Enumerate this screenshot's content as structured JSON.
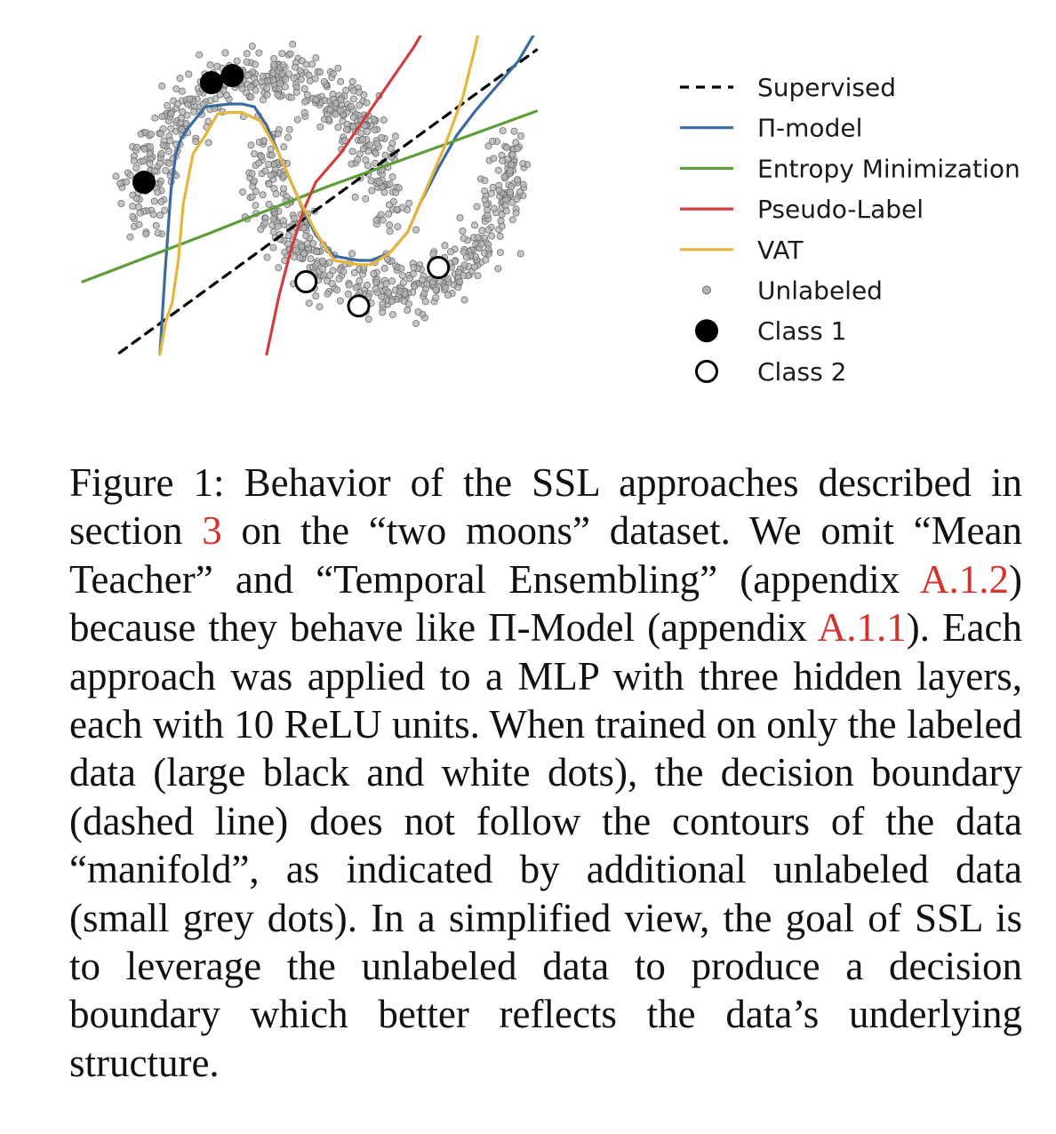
{
  "chart_data": {
    "type": "scatter",
    "title": "",
    "xlabel": "",
    "ylabel": "",
    "xlim": [
      -1.5,
      2.5
    ],
    "ylim": [
      -1.0,
      1.5
    ],
    "grid": false,
    "axes_visible": false,
    "legend_placement": "right",
    "dataset": "two moons",
    "unlabeled": {
      "name": "Unlabeled",
      "color": "#b3b3b3",
      "count": 1000,
      "noise": 0.1
    },
    "labeled": [
      {
        "name": "Class 1",
        "color": "#000000",
        "points": [
          [
            -1.0,
            0.25
          ],
          [
            -0.45,
            0.95
          ],
          [
            -0.28,
            1.0
          ]
        ]
      },
      {
        "name": "Class 2",
        "color": "#ffffff",
        "points": [
          [
            0.32,
            -0.45
          ],
          [
            0.75,
            -0.62
          ],
          [
            1.4,
            -0.35
          ]
        ]
      }
    ],
    "series": [
      {
        "name": "Supervised",
        "color": "#000000",
        "style": "dashed",
        "x": [
          -1.2,
          2.2
        ],
        "y": [
          -0.95,
          1.18
        ]
      },
      {
        "name": "Π-model",
        "color": "#3b6aa0",
        "style": "solid",
        "x": [
          -0.87,
          -0.83,
          -0.78,
          -0.74,
          -0.7,
          -0.65,
          -0.5,
          -0.3,
          -0.2,
          -0.1,
          0.0,
          0.15,
          0.3,
          0.4,
          0.55,
          0.75,
          0.85,
          1.0,
          1.15,
          1.25,
          1.4,
          1.55,
          1.7,
          1.85,
          2.05,
          2.2
        ],
        "y": [
          -0.96,
          -0.4,
          0.2,
          0.45,
          0.55,
          0.62,
          0.78,
          0.8,
          0.8,
          0.78,
          0.65,
          0.35,
          0.05,
          -0.12,
          -0.27,
          -0.3,
          -0.3,
          -0.25,
          -0.1,
          0.1,
          0.35,
          0.58,
          0.75,
          0.9,
          1.1,
          1.32
        ]
      },
      {
        "name": "Entropy Minimization",
        "color": "#5d9e3a",
        "style": "solid",
        "x": [
          -1.5,
          -0.5,
          0.5,
          1.5,
          2.2
        ],
        "y": [
          -0.45,
          -0.12,
          0.22,
          0.53,
          0.75
        ]
      },
      {
        "name": "Pseudo-Label",
        "color": "#d43d3d",
        "style": "solid",
        "x": [
          0.0,
          0.1,
          0.2,
          0.3,
          0.4,
          0.6,
          0.8,
          1.0,
          1.2,
          1.3,
          1.45
        ],
        "y": [
          -0.96,
          -0.55,
          -0.22,
          0.05,
          0.25,
          0.45,
          0.7,
          0.95,
          1.2,
          1.35,
          1.45
        ]
      },
      {
        "name": "VAT",
        "color": "#e6b53d",
        "style": "solid",
        "x": [
          -0.87,
          -0.82,
          -0.77,
          -0.72,
          -0.68,
          -0.6,
          -0.5,
          -0.4,
          -0.3,
          -0.2,
          -0.05,
          0.1,
          0.25,
          0.4,
          0.55,
          0.75,
          0.85,
          1.0,
          1.15,
          1.3,
          1.45,
          1.6,
          1.7,
          1.75,
          1.78
        ],
        "y": [
          -0.96,
          -0.72,
          -0.6,
          -0.3,
          0.1,
          0.45,
          0.58,
          0.73,
          0.74,
          0.74,
          0.68,
          0.45,
          0.15,
          -0.1,
          -0.3,
          -0.33,
          -0.33,
          -0.25,
          -0.1,
          0.2,
          0.5,
          0.85,
          1.2,
          1.4,
          1.45
        ]
      }
    ],
    "legend": [
      {
        "label": "Supervised",
        "marker": "dashed-line",
        "color": "#000000"
      },
      {
        "label": "Π-model",
        "marker": "line",
        "color": "#3b6aa0"
      },
      {
        "label": "Entropy Minimization",
        "marker": "line",
        "color": "#5d9e3a"
      },
      {
        "label": "Pseudo-Label",
        "marker": "line",
        "color": "#d43d3d"
      },
      {
        "label": "VAT",
        "marker": "line",
        "color": "#e6b53d"
      },
      {
        "label": "Unlabeled",
        "marker": "small-dot",
        "color": "#b3b3b3"
      },
      {
        "label": "Class 1",
        "marker": "filled-dot",
        "color": "#000000"
      },
      {
        "label": "Class 2",
        "marker": "open-dot",
        "color": "#ffffff"
      }
    ]
  },
  "caption": {
    "label": "Figure 1:",
    "t1": "Behavior of the SSL approaches described in section",
    "ref1": "3",
    "t2": "on the “two moons” dataset. We omit “Mean Teacher” and “Temporal Ensembling” (appendix",
    "ref2": "A.1.2",
    "t3": ") because they behave like Π-Model (appendix",
    "ref3": "A.1.1",
    "t4": "). Each approach was applied to a MLP with three hidden layers, each with 10 ReLU units. When trained on only the labeled data (large black and white dots), the decision boundary (dashed line) does not follow the contours of the data “manifold”, as indicated by additional unlabeled data (small grey dots). In a simplified view, the goal of SSL is to leverage the unlabeled data to produce a decision boundary which better reflects the data’s underlying structure.",
    "ref_color": "#d6322b"
  }
}
